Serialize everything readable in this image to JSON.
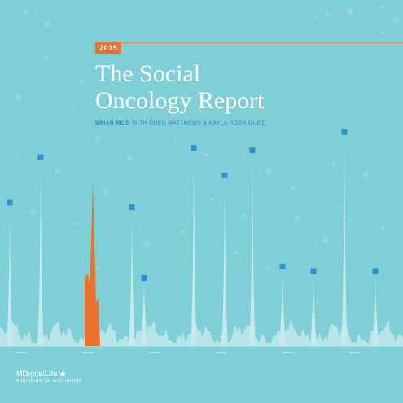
{
  "cover": {
    "year": "2015",
    "title_line1": "The Social",
    "title_line2": "Oncology Report",
    "authors_lead": "BRIAN REID",
    "authors_rest": " WITH GREG MATTHEWS & KAYLA RODRIGUEZ",
    "publisher_name": "MDigitalLife",
    "publisher_tagline": "A DIVISION OF W2O GROUP"
  },
  "colors": {
    "background": "#7ecfd6",
    "peak_fill": "#c5e9ec",
    "highlight": "#e9732d",
    "marker": "#2f8fd6",
    "authors_text": "#2f7fc1"
  },
  "icons": [
    "star-icon"
  ],
  "chart_data": {
    "type": "area",
    "title": "",
    "xlabel": "",
    "ylabel": "",
    "x_ticks_legible": false,
    "tick_count": 6,
    "ylim": [
      0,
      100
    ],
    "highlight_peak_index": 2,
    "peaks": [
      {
        "value": 60,
        "marker": true
      },
      {
        "value": 80,
        "marker": true
      },
      {
        "value": 72,
        "marker": false,
        "highlighted": true
      },
      {
        "value": 58,
        "marker": true
      },
      {
        "value": 27,
        "marker": true
      },
      {
        "value": 84,
        "marker": true
      },
      {
        "value": 72,
        "marker": true
      },
      {
        "value": 83,
        "marker": true
      },
      {
        "value": 32,
        "marker": true
      },
      {
        "value": 30,
        "marker": true
      },
      {
        "value": 91,
        "marker": true
      },
      {
        "value": 30,
        "marker": true
      }
    ]
  }
}
